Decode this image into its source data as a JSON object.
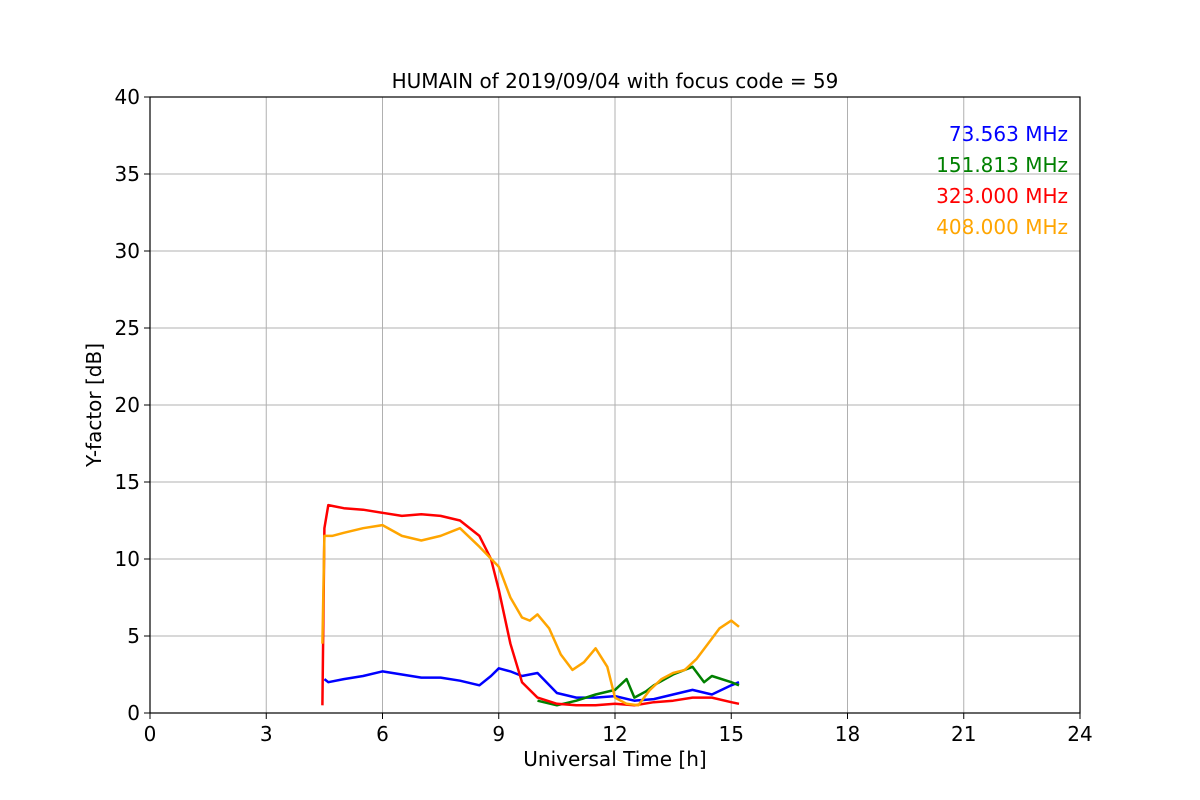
{
  "chart_data": {
    "type": "line",
    "title": "HUMAIN of 2019/09/04 with focus code = 59",
    "xlabel": "Universal Time [h]",
    "ylabel": "Y-factor [dB]",
    "xlim": [
      0,
      24
    ],
    "ylim": [
      0,
      40
    ],
    "xticks": [
      0,
      3,
      6,
      9,
      12,
      15,
      18,
      21,
      24
    ],
    "yticks": [
      0,
      5,
      10,
      15,
      20,
      25,
      30,
      35,
      40
    ],
    "grid": true,
    "legend_position": "top-right",
    "series": [
      {
        "name": "73.563 MHz",
        "color": "#0000ff",
        "x": [
          4.5,
          4.6,
          5.0,
          5.5,
          6.0,
          6.5,
          7.0,
          7.5,
          8.0,
          8.5,
          8.8,
          9.0,
          9.3,
          9.6,
          10.0,
          10.5,
          11.0,
          11.5,
          12.0,
          12.5,
          13.0,
          13.5,
          14.0,
          14.5,
          15.0,
          15.2
        ],
        "y": [
          2.2,
          2.0,
          2.2,
          2.4,
          2.7,
          2.5,
          2.3,
          2.3,
          2.1,
          1.8,
          2.4,
          2.9,
          2.7,
          2.4,
          2.6,
          1.3,
          1.0,
          1.0,
          1.1,
          0.8,
          0.9,
          1.2,
          1.5,
          1.2,
          1.8,
          2.0
        ]
      },
      {
        "name": "151.813 MHz",
        "color": "#008000",
        "x": [
          10.0,
          10.5,
          11.0,
          11.5,
          12.0,
          12.3,
          12.5,
          12.8,
          13.0,
          13.5,
          14.0,
          14.3,
          14.5,
          15.0,
          15.2
        ],
        "y": [
          0.8,
          0.5,
          0.8,
          1.2,
          1.5,
          2.2,
          1.0,
          1.4,
          1.8,
          2.5,
          3.0,
          2.0,
          2.4,
          2.0,
          1.8
        ]
      },
      {
        "name": "323.000 MHz",
        "color": "#ff0000",
        "x": [
          4.45,
          4.5,
          4.6,
          5.0,
          5.5,
          6.0,
          6.5,
          7.0,
          7.5,
          8.0,
          8.5,
          8.8,
          9.0,
          9.3,
          9.6,
          10.0,
          10.5,
          11.0,
          11.5,
          12.0,
          12.5,
          13.0,
          13.5,
          14.0,
          14.5,
          15.0,
          15.2
        ],
        "y": [
          0.5,
          12.0,
          13.5,
          13.3,
          13.2,
          13.0,
          12.8,
          12.9,
          12.8,
          12.5,
          11.5,
          10.0,
          8.0,
          4.5,
          2.0,
          1.0,
          0.6,
          0.5,
          0.5,
          0.6,
          0.5,
          0.7,
          0.8,
          1.0,
          1.0,
          0.7,
          0.6
        ]
      },
      {
        "name": "408.000 MHz",
        "color": "#ffa500",
        "x": [
          4.45,
          4.5,
          4.7,
          5.0,
          5.5,
          6.0,
          6.5,
          7.0,
          7.5,
          8.0,
          8.5,
          9.0,
          9.3,
          9.6,
          9.8,
          10.0,
          10.3,
          10.6,
          10.9,
          11.2,
          11.5,
          11.8,
          12.0,
          12.3,
          12.6,
          12.9,
          13.2,
          13.5,
          13.8,
          14.1,
          14.4,
          14.7,
          15.0,
          15.2
        ],
        "y": [
          4.5,
          11.5,
          11.5,
          11.7,
          12.0,
          12.2,
          11.5,
          11.2,
          11.5,
          12.0,
          10.8,
          9.5,
          7.5,
          6.2,
          6.0,
          6.4,
          5.5,
          3.8,
          2.8,
          3.3,
          4.2,
          3.0,
          1.0,
          0.6,
          0.5,
          1.5,
          2.2,
          2.6,
          2.8,
          3.5,
          4.5,
          5.5,
          6.0,
          5.6
        ]
      }
    ]
  }
}
